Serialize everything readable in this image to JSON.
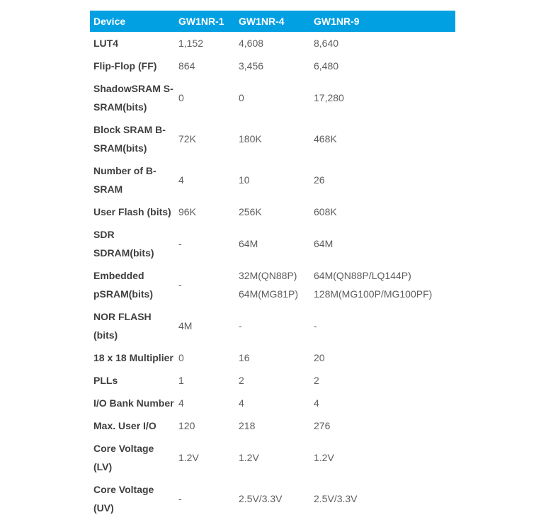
{
  "page": {
    "background": "#ffffff"
  },
  "table": {
    "accent_color": "#00a0e2",
    "header_text_color": "#ffffff",
    "label_color": "#3f3f3f",
    "value_color": "#5e5e5e",
    "columns": [
      "Device",
      "GW1NR-1",
      "GW1NR-4",
      "GW1NR-9"
    ],
    "rows": [
      {
        "label": "LUT4",
        "values": [
          "1,152",
          "4,608",
          "8,640"
        ]
      },
      {
        "label": "Flip-Flop (FF)",
        "values": [
          "864",
          "3,456",
          "6,480"
        ]
      },
      {
        "label": "ShadowSRAM S-\nSRAM(bits)",
        "values": [
          "0",
          "0",
          "17,280"
        ]
      },
      {
        "label": "Block SRAM B-\nSRAM(bits)",
        "values": [
          "72K",
          "180K",
          "468K"
        ]
      },
      {
        "label": "Number of B-\nSRAM",
        "values": [
          "4",
          "10",
          "26"
        ]
      },
      {
        "label": "User Flash (bits)",
        "values": [
          "96K",
          "256K",
          "608K"
        ]
      },
      {
        "label": "SDR\nSDRAM(bits)",
        "values": [
          "-",
          "64M",
          "64M"
        ]
      },
      {
        "label": "Embedded\npSRAM(bits)",
        "values": [
          "-",
          "32M(QN88P)\n64M(MG81P)",
          "64M(QN88P/LQ144P)\n128M(MG100P/MG100PF)"
        ]
      },
      {
        "label": "NOR FLASH\n(bits)",
        "values": [
          "4M",
          "-",
          "-"
        ]
      },
      {
        "label": "18 x 18 Multiplier",
        "values": [
          "0",
          "16",
          "20"
        ]
      },
      {
        "label": "PLLs",
        "values": [
          "1",
          "2",
          "2"
        ]
      },
      {
        "label": "I/O Bank Number",
        "values": [
          "4",
          "4",
          "4"
        ]
      },
      {
        "label": "Max. User I/O",
        "values": [
          "120",
          "218",
          "276"
        ]
      },
      {
        "label": "Core Voltage\n(LV)",
        "values": [
          "1.2V",
          "1.2V",
          "1.2V"
        ]
      },
      {
        "label": "Core Voltage\n(UV)",
        "values": [
          "-",
          "2.5V/3.3V",
          "2.5V/3.3V"
        ]
      }
    ]
  }
}
